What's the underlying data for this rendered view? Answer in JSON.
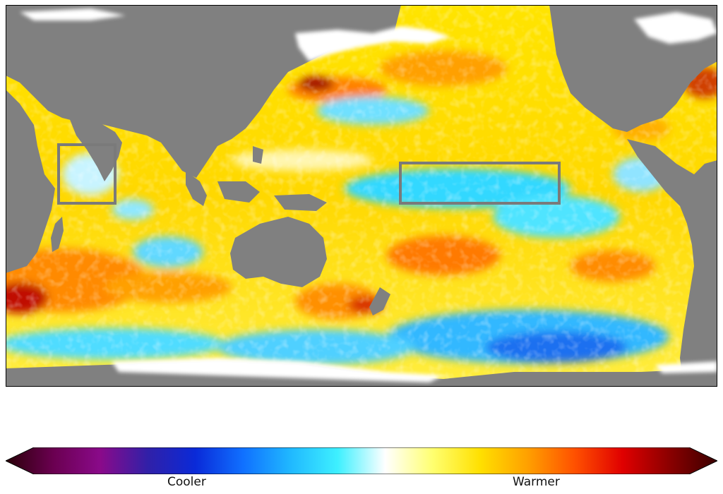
{
  "legend": {
    "cooler_label": "Cooler",
    "warmer_label": "Warmer",
    "colormap": [
      "#2a0008",
      "#6a0050",
      "#8a0a8a",
      "#3020a8",
      "#0a2ad8",
      "#1070ff",
      "#20b8ff",
      "#3ef0ff",
      "#ffffff",
      "#ffff70",
      "#ffe000",
      "#ffa000",
      "#ff5000",
      "#e00000",
      "#8a0000",
      "#3a0000"
    ]
  },
  "map": {
    "land_color": "#808080",
    "ice_color": "#ffffff",
    "highlight_box_color": "#7a7a7a",
    "highlight_boxes": [
      "indian-ocean-box",
      "central-pacific-box"
    ]
  }
}
